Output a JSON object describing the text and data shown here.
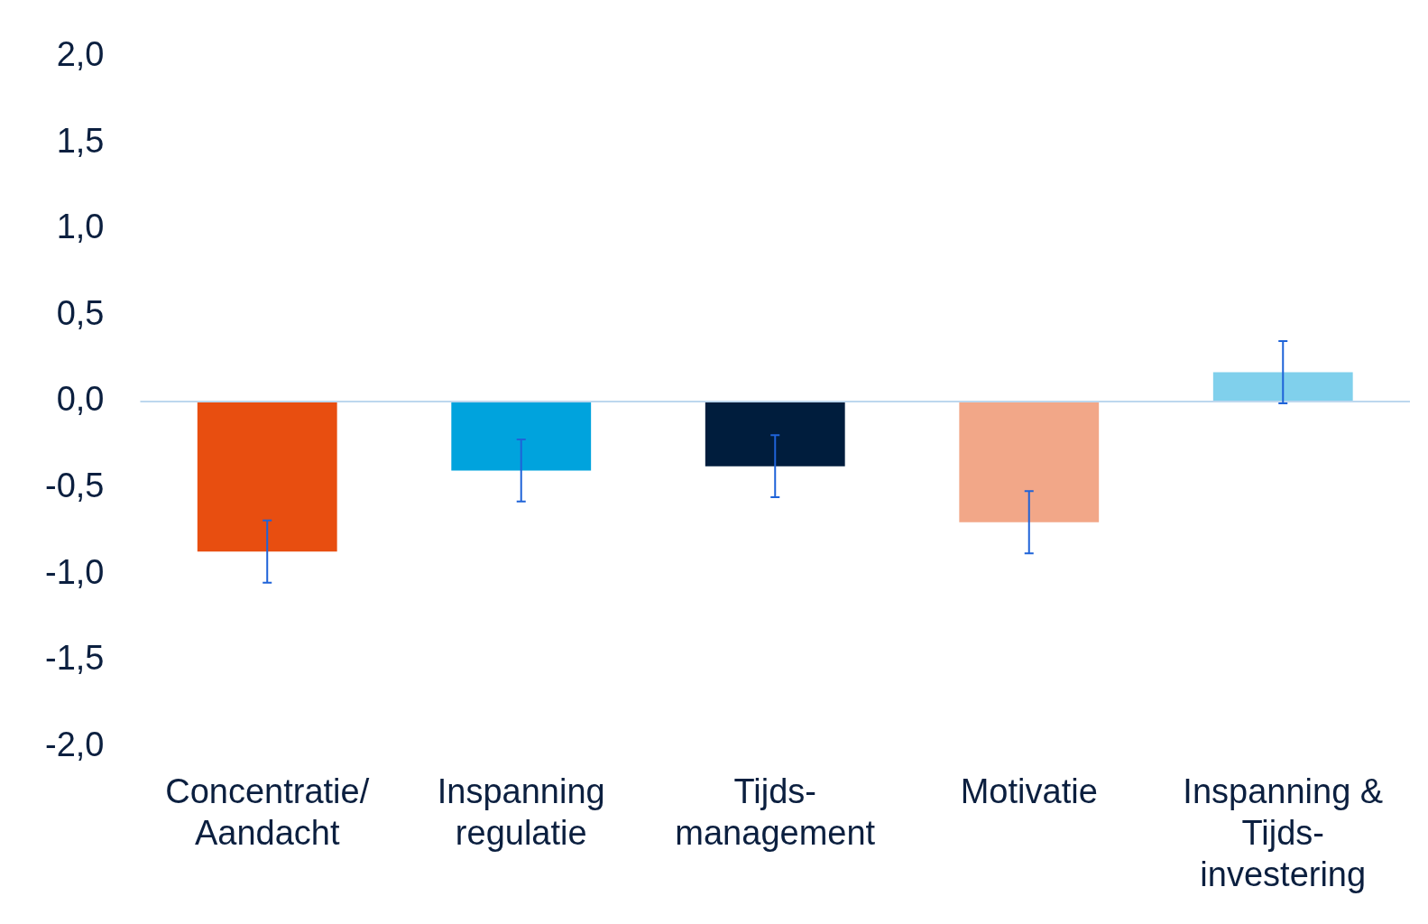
{
  "chart_data": {
    "type": "bar",
    "categories": [
      "Concentratie/\nAandacht",
      "Inspanning\nregulatie",
      "Tijds-\nmanagement",
      "Motivatie",
      "Inspanning &\nTijds-\ninvestering"
    ],
    "values": [
      -0.87,
      -0.4,
      -0.375,
      -0.7,
      0.17
    ],
    "errors": [
      0.18,
      0.18,
      0.18,
      0.18,
      0.18
    ],
    "colors": [
      "#e84e10",
      "#00a3dd",
      "#001d3d",
      "#f2a788",
      "#80d0ec"
    ],
    "ylim": [
      -2,
      2
    ],
    "yticks": [
      {
        "value": -2,
        "label": "-2,0"
      },
      {
        "value": -1.5,
        "label": "-1,5"
      },
      {
        "value": -1,
        "label": "-1,0"
      },
      {
        "value": -0.5,
        "label": "-0,5"
      },
      {
        "value": 0,
        "label": "0,0"
      },
      {
        "value": 0.5,
        "label": "0,5"
      },
      {
        "value": 1,
        "label": "1,0"
      },
      {
        "value": 1.5,
        "label": "1,5"
      },
      {
        "value": 2,
        "label": "2,0"
      }
    ],
    "ref_lines": [
      {
        "axis": "y",
        "value": 0,
        "color": "#bdd7ee"
      }
    ],
    "grid": false,
    "legend": false
  }
}
